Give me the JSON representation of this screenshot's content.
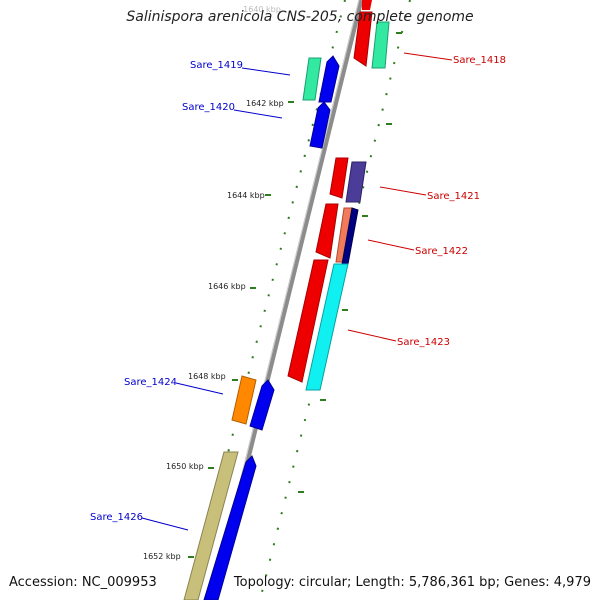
{
  "title": "Salinispora arenicola CNS-205, complete genome",
  "accession": "Accession: NC_009953",
  "summary": "Topology: circular; Length: 5,786,361 bp; Genes: 4,979",
  "scale": {
    "partial_top_label": "1640 kbp",
    "ticks": [
      "1642 kbp",
      "1644 kbp",
      "1646 kbp",
      "1648 kbp",
      "1650 kbp",
      "1652 kbp"
    ]
  },
  "colors": {
    "backbone": "#8c8c8c",
    "tick": "#2e7d1e",
    "forward_label": "#0000cc",
    "reverse_label": "#cc0000"
  },
  "genes": [
    {
      "label": "Sare_1418",
      "strand": "reverse"
    },
    {
      "label": "Sare_1419",
      "strand": "forward"
    },
    {
      "label": "Sare_1420",
      "strand": "forward"
    },
    {
      "label": "Sare_1421",
      "strand": "reverse"
    },
    {
      "label": "Sare_1422",
      "strand": "reverse"
    },
    {
      "label": "Sare_1423",
      "strand": "reverse"
    },
    {
      "label": "Sare_1424",
      "strand": "forward"
    },
    {
      "label": "Sare_1426",
      "strand": "forward"
    }
  ]
}
